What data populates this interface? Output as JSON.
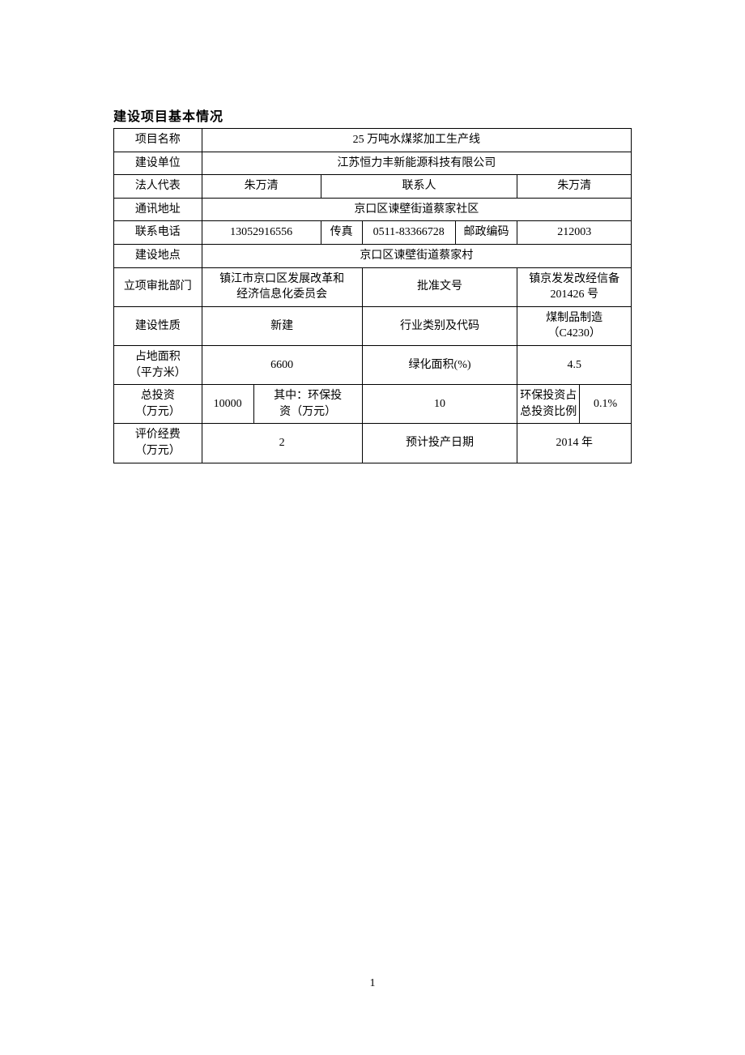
{
  "title": "建设项目基本情况",
  "page_num": "1",
  "colors": {
    "border": "#000000",
    "text": "#000000",
    "background": "#ffffff"
  },
  "table": {
    "columns": 8,
    "col_widths_pct": [
      17,
      10,
      13,
      8,
      18,
      12,
      12,
      10
    ],
    "font_size_pt": 10.5,
    "rows": [
      {
        "cells": [
          {
            "text": "项目名称",
            "colspan": 1
          },
          {
            "text": "25 万吨水煤浆加工生产线",
            "colspan": 7
          }
        ]
      },
      {
        "cells": [
          {
            "text": "建设单位",
            "colspan": 1
          },
          {
            "text": "江苏恒力丰新能源科技有限公司",
            "colspan": 7
          }
        ]
      },
      {
        "cells": [
          {
            "text": "法人代表",
            "colspan": 1
          },
          {
            "text": "朱万清",
            "colspan": 2
          },
          {
            "text": "联系人",
            "colspan": 3
          },
          {
            "text": "朱万清",
            "colspan": 2
          }
        ]
      },
      {
        "cells": [
          {
            "text": "通讯地址",
            "colspan": 1
          },
          {
            "text": "京口区谏壁街道蔡家社区",
            "colspan": 7
          }
        ]
      },
      {
        "cells": [
          {
            "text": "联系电话",
            "colspan": 1
          },
          {
            "text": "13052916556",
            "colspan": 2
          },
          {
            "text": "传真",
            "colspan": 1
          },
          {
            "text": "0511-83366728",
            "colspan": 1
          },
          {
            "text": "邮政编码",
            "colspan": 1
          },
          {
            "text": "212003",
            "colspan": 2
          }
        ]
      },
      {
        "cells": [
          {
            "text": "建设地点",
            "colspan": 1
          },
          {
            "text": "京口区谏壁街道蔡家村",
            "colspan": 7
          }
        ]
      },
      {
        "cells": [
          {
            "text": "立项审批部门",
            "colspan": 1
          },
          {
            "text": "镇江市京口区发展改革和\n经济信息化委员会",
            "colspan": 3,
            "multiline": true
          },
          {
            "text": "批准文号",
            "colspan": 2
          },
          {
            "text": "镇京发发改经信备\n201426 号",
            "colspan": 2,
            "multiline": true
          }
        ]
      },
      {
        "cells": [
          {
            "text": "建设性质",
            "colspan": 1
          },
          {
            "text": "新建",
            "colspan": 3
          },
          {
            "text": "行业类别及代码",
            "colspan": 2
          },
          {
            "text": "煤制品制造\n（C4230）",
            "colspan": 2,
            "multiline": true
          }
        ]
      },
      {
        "cells": [
          {
            "text": "占地面积\n（平方米）",
            "colspan": 1,
            "multiline": true
          },
          {
            "text": "6600",
            "colspan": 3
          },
          {
            "text": "绿化面积(%)",
            "colspan": 2
          },
          {
            "text": "4.5",
            "colspan": 2
          }
        ]
      },
      {
        "cells": [
          {
            "text": "总投资\n（万元）",
            "colspan": 1,
            "multiline": true
          },
          {
            "text": "10000",
            "colspan": 1
          },
          {
            "text": "其中：环保投\n资（万元）",
            "colspan": 2,
            "multiline": true
          },
          {
            "text": "10",
            "colspan": 2
          },
          {
            "text": "环保投资占\n总投资比例",
            "colspan": 1,
            "multiline": true
          },
          {
            "text": "0.1%",
            "colspan": 1
          }
        ]
      },
      {
        "cells": [
          {
            "text": "评价经费\n（万元）",
            "colspan": 1,
            "multiline": true
          },
          {
            "text": "2",
            "colspan": 3
          },
          {
            "text": "预计投产日期",
            "colspan": 2
          },
          {
            "text": "2014 年",
            "colspan": 2
          }
        ]
      }
    ]
  }
}
